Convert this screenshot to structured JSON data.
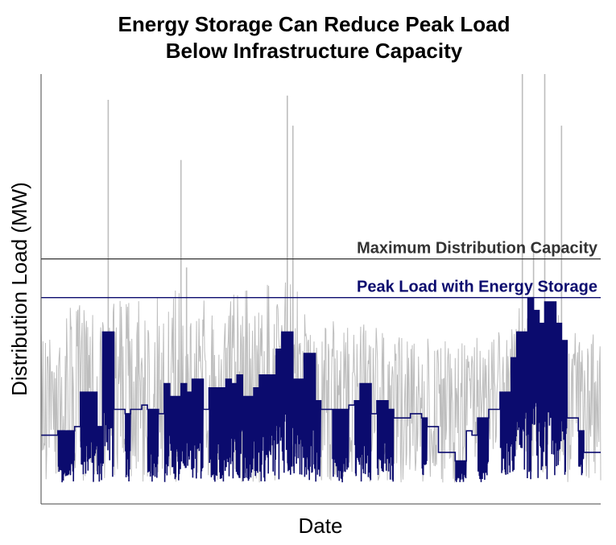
{
  "chart_data": {
    "type": "line",
    "title_lines": [
      "Energy Storage Can Reduce Peak Load",
      "Below Infrastructure Capacity"
    ],
    "xlabel": "Date",
    "ylabel": "Distribution Load (MW)",
    "ylim": [
      0,
      100
    ],
    "grid": false,
    "legend": "none",
    "reference_lines": [
      {
        "label": "Maximum Distribution Capacity",
        "y": 57,
        "color": "#333333"
      },
      {
        "label": "Peak Load with Energy Storage",
        "y": 48,
        "color": "#0b0b6e"
      }
    ],
    "series": [
      {
        "color": "#bdbdbd",
        "peaks": [
          [
            12,
            94
          ],
          [
            25,
            80
          ],
          [
            26,
            55
          ],
          [
            44,
            95
          ],
          [
            45,
            88
          ],
          [
            86,
            100
          ],
          [
            88,
            60
          ],
          [
            90,
            100
          ],
          [
            93,
            88
          ]
        ],
        "profile": [
          [
            0,
            40
          ],
          [
            5,
            45
          ],
          [
            10,
            44
          ],
          [
            15,
            47
          ],
          [
            20,
            46
          ],
          [
            25,
            50
          ],
          [
            30,
            48
          ],
          [
            35,
            50
          ],
          [
            40,
            49
          ],
          [
            45,
            50
          ],
          [
            50,
            42
          ],
          [
            55,
            40
          ],
          [
            60,
            40
          ],
          [
            65,
            38
          ],
          [
            70,
            37
          ],
          [
            75,
            36
          ],
          [
            80,
            38
          ],
          [
            85,
            44
          ],
          [
            90,
            45
          ],
          [
            95,
            40
          ],
          [
            100,
            38
          ]
        ],
        "floor": 5
      },
      {
        "color": "#0b0b6e",
        "steps": [
          [
            0,
            16
          ],
          [
            3,
            17
          ],
          [
            6,
            18
          ],
          [
            7,
            26
          ],
          [
            10,
            18
          ],
          [
            11,
            40
          ],
          [
            13,
            22
          ],
          [
            15,
            21
          ],
          [
            16,
            22
          ],
          [
            18,
            23
          ],
          [
            19,
            22
          ],
          [
            21,
            21
          ],
          [
            22,
            28
          ],
          [
            23,
            25
          ],
          [
            25,
            28
          ],
          [
            26,
            26
          ],
          [
            27,
            29
          ],
          [
            29,
            22
          ],
          [
            30,
            27
          ],
          [
            33,
            29
          ],
          [
            34,
            28
          ],
          [
            35,
            30
          ],
          [
            36,
            25
          ],
          [
            38,
            27
          ],
          [
            39,
            30
          ],
          [
            42,
            36
          ],
          [
            43,
            40
          ],
          [
            45,
            29
          ],
          [
            47,
            35
          ],
          [
            49,
            24
          ],
          [
            50,
            22
          ],
          [
            52,
            22
          ],
          [
            55,
            23
          ],
          [
            56,
            24
          ],
          [
            57,
            28
          ],
          [
            59,
            21
          ],
          [
            60,
            24
          ],
          [
            62,
            22
          ],
          [
            63,
            20
          ],
          [
            66,
            21
          ],
          [
            68,
            20
          ],
          [
            69,
            18
          ],
          [
            71,
            12
          ],
          [
            74,
            10
          ],
          [
            76,
            17
          ],
          [
            77,
            16
          ],
          [
            78,
            20
          ],
          [
            80,
            22
          ],
          [
            82,
            26
          ],
          [
            84,
            34
          ],
          [
            85,
            40
          ],
          [
            87,
            48
          ],
          [
            88,
            45
          ],
          [
            89,
            42
          ],
          [
            90,
            47
          ],
          [
            92,
            42
          ],
          [
            93,
            38
          ],
          [
            94,
            20
          ],
          [
            96,
            17
          ],
          [
            97,
            12
          ],
          [
            99,
            12
          ]
        ],
        "floor": 5
      }
    ]
  }
}
